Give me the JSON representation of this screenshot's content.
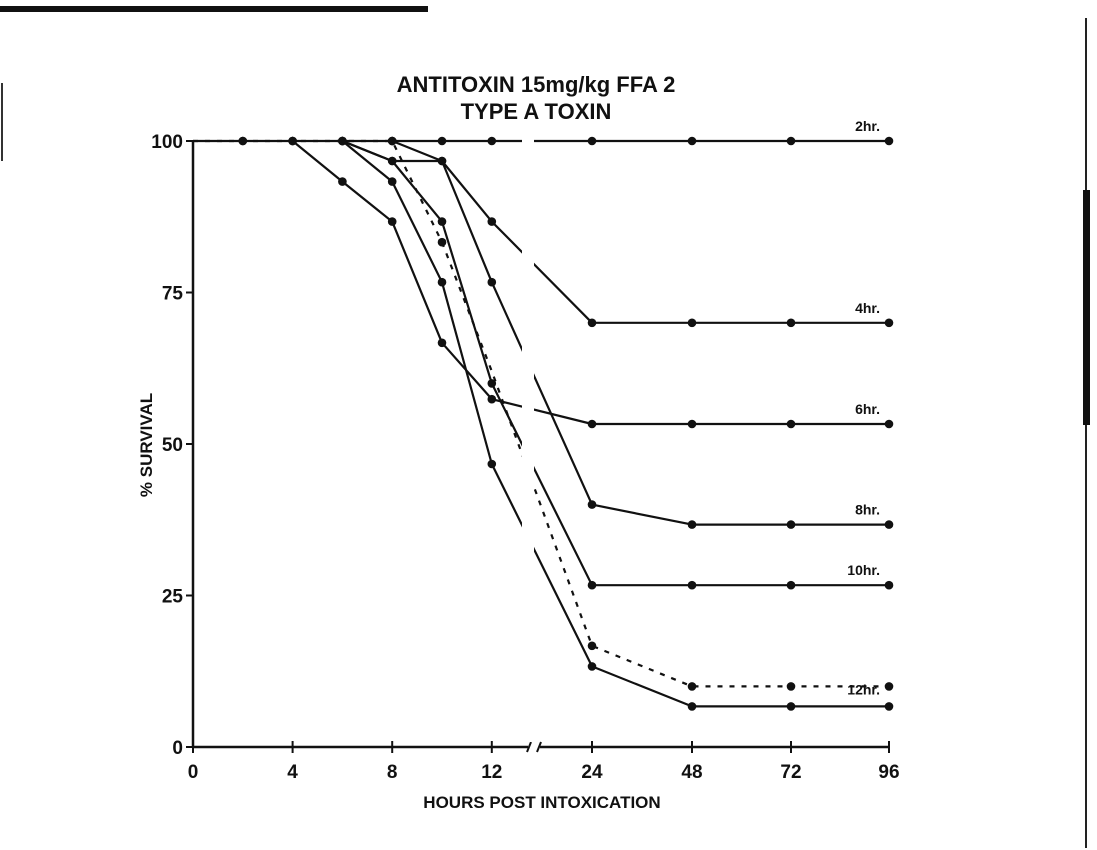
{
  "chart_data": {
    "type": "line",
    "title": "ANTITOXIN 15mg/kg FFA 2",
    "subtitle": "TYPE A TOXIN",
    "xlabel": "HOURS POST INTOXICATION",
    "ylabel": "% SURVIVAL",
    "x_ticks": [
      0,
      4,
      8,
      12,
      24,
      48,
      72,
      96
    ],
    "x_tick_labels": [
      "0",
      "4",
      "8",
      "12",
      "24",
      "48",
      "72",
      "96"
    ],
    "x_axis_break": "between 12 and 24",
    "y_ticks": [
      0,
      25,
      50,
      75,
      100
    ],
    "y_tick_labels": [
      "0",
      "25",
      "50",
      "75",
      "100"
    ],
    "ylim": [
      0,
      100
    ],
    "grid": false,
    "color": "#111111",
    "series": [
      {
        "name": "2hr.",
        "style": "solid",
        "x": [
          0,
          2,
          4,
          6,
          8,
          10,
          12,
          24,
          48,
          72,
          96
        ],
        "y": [
          100,
          100,
          100,
          100,
          100,
          100,
          100,
          100,
          100,
          100,
          100
        ],
        "unmarked_x": [
          0
        ]
      },
      {
        "name": "4hr.",
        "style": "solid",
        "x": [
          8,
          10,
          12,
          24,
          48,
          72,
          96
        ],
        "y": [
          100,
          96.7,
          86.7,
          70,
          70,
          70,
          70
        ]
      },
      {
        "name": "6hr.",
        "style": "solid",
        "x": [
          4,
          6,
          8,
          10,
          12,
          24,
          48,
          72,
          96
        ],
        "y": [
          100,
          93.3,
          86.7,
          66.7,
          57.4,
          53.3,
          53.3,
          53.3,
          53.3
        ]
      },
      {
        "name": "8hr.",
        "style": "solid",
        "x": [
          6,
          8,
          10,
          12,
          24,
          48,
          72,
          96
        ],
        "y": [
          100,
          96.7,
          96.7,
          76.7,
          40,
          36.7,
          36.7,
          36.7
        ]
      },
      {
        "name": "10hr.",
        "style": "solid",
        "x": [
          6,
          8,
          10,
          12,
          24,
          48,
          72,
          96
        ],
        "y": [
          100,
          96.7,
          86.7,
          60,
          26.7,
          26.7,
          26.7,
          26.7
        ]
      },
      {
        "name": "12hr.",
        "style": "solid",
        "x": [
          6,
          8,
          10,
          12,
          24,
          48,
          72,
          96
        ],
        "y": [
          100,
          93.3,
          76.7,
          46.7,
          13.3,
          6.7,
          6.7,
          6.7
        ]
      },
      {
        "style": "dashed",
        "x": [
          0,
          2,
          4,
          6,
          8,
          10,
          12,
          24,
          48,
          72,
          96
        ],
        "y": [
          100,
          100,
          100,
          100,
          100,
          83.3,
          62,
          16.7,
          10,
          10,
          10
        ],
        "unmarked_x": [
          0,
          12
        ]
      }
    ]
  }
}
